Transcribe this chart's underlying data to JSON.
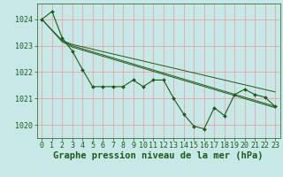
{
  "background_color": "#c8e8e8",
  "grid_color_v": "#e89898",
  "grid_color_h": "#e89898",
  "line_color": "#1a5c1a",
  "title": "Graphe pression niveau de la mer (hPa)",
  "xlim": [
    -0.5,
    23.5
  ],
  "ylim": [
    1019.5,
    1024.6
  ],
  "yticks": [
    1020,
    1021,
    1022,
    1023,
    1024
  ],
  "xticks": [
    0,
    1,
    2,
    3,
    4,
    5,
    6,
    7,
    8,
    9,
    10,
    11,
    12,
    13,
    14,
    15,
    16,
    17,
    18,
    19,
    20,
    21,
    22,
    23
  ],
  "series1_x": [
    0,
    1,
    2,
    3,
    4,
    5,
    6,
    7,
    8,
    9,
    10,
    11,
    12,
    13,
    14,
    15,
    16,
    17,
    18,
    19,
    20,
    21,
    22,
    23
  ],
  "series1_y": [
    1024.0,
    1024.3,
    1023.3,
    1022.8,
    1022.1,
    1021.45,
    1021.45,
    1021.45,
    1021.45,
    1021.7,
    1021.45,
    1021.7,
    1021.7,
    1021.0,
    1020.4,
    1019.95,
    1019.85,
    1020.65,
    1020.35,
    1021.15,
    1021.35,
    1021.15,
    1021.05,
    1020.7
  ],
  "series2_x": [
    0,
    2,
    3,
    23
  ],
  "series2_y": [
    1024.0,
    1023.2,
    1023.0,
    1020.7
  ],
  "series3_x": [
    0,
    2,
    3,
    23
  ],
  "series3_y": [
    1024.0,
    1023.15,
    1022.95,
    1020.65
  ],
  "series4_x": [
    2,
    3,
    23
  ],
  "series4_y": [
    1023.2,
    1023.05,
    1021.25
  ],
  "title_fontsize": 7.5,
  "tick_fontsize": 6.0
}
